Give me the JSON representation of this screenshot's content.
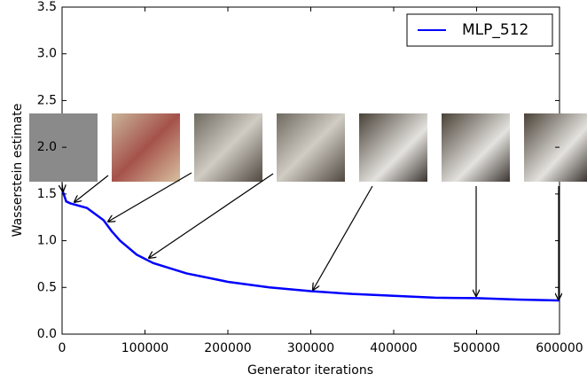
{
  "chart_data": {
    "type": "line",
    "x_label": "Generator iterations",
    "y_label": "Wasserstein estimate",
    "x": [
      0,
      5000,
      10000,
      30000,
      50000,
      60000,
      70000,
      90000,
      110000,
      150000,
      200000,
      250000,
      300000,
      350000,
      400000,
      450000,
      500000,
      550000,
      600000
    ],
    "series": [
      {
        "name": "MLP_512",
        "color": "#0000ff",
        "values": [
          1.55,
          1.42,
          1.4,
          1.35,
          1.22,
          1.1,
          1.0,
          0.85,
          0.76,
          0.65,
          0.56,
          0.5,
          0.46,
          0.43,
          0.41,
          0.39,
          0.385,
          0.37,
          0.36
        ]
      }
    ],
    "xlim": [
      0,
      600000
    ],
    "ylim": [
      0,
      3.5
    ],
    "xticks": [
      0,
      100000,
      200000,
      300000,
      400000,
      500000,
      600000
    ],
    "yticks": [
      {
        "value": 0,
        "label": "0.0"
      },
      0.5,
      {
        "value": 1,
        "label": "1.0"
      },
      1.5,
      {
        "value": 2,
        "label": "2.0"
      },
      2.5,
      {
        "value": 3,
        "label": "3.0"
      },
      3.5
    ],
    "legend": "upper right"
  }
}
